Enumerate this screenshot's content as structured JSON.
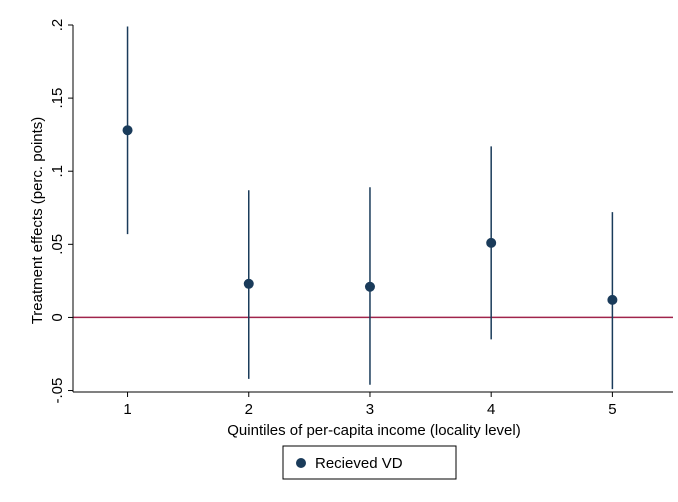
{
  "chart_data": {
    "type": "scatter",
    "title": "",
    "xlabel": "Quintiles of per-capita income (locality level)",
    "ylabel": "Treatment effects (perc. points)",
    "x_ticks": [
      "1",
      "2",
      "3",
      "4",
      "5"
    ],
    "y_ticks": [
      ".2",
      ".15",
      ".1",
      ".05",
      "0",
      "-.05"
    ],
    "y_tick_values": [
      0.2,
      0.15,
      0.1,
      0.05,
      0,
      -0.05
    ],
    "xlim": [
      0.55,
      5.5
    ],
    "ylim": [
      -0.051,
      0.2
    ],
    "reference_line": {
      "y": 0,
      "color": "#a0244b"
    },
    "legend_position": "bottom-center",
    "grid": false,
    "series": [
      {
        "name": "Recieved VD",
        "color": "#1a3b5a",
        "points": [
          {
            "x": 1,
            "y": 0.128,
            "ci_low": 0.057,
            "ci_high": 0.199
          },
          {
            "x": 2,
            "y": 0.023,
            "ci_low": -0.042,
            "ci_high": 0.087
          },
          {
            "x": 3,
            "y": 0.021,
            "ci_low": -0.046,
            "ci_high": 0.089
          },
          {
            "x": 4,
            "y": 0.051,
            "ci_low": -0.015,
            "ci_high": 0.117
          },
          {
            "x": 5,
            "y": 0.012,
            "ci_low": -0.049,
            "ci_high": 0.072
          }
        ]
      }
    ]
  }
}
